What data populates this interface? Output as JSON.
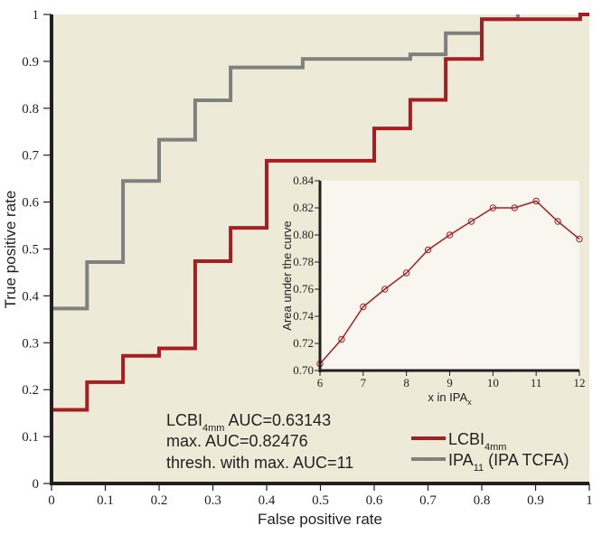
{
  "chart_data": [
    {
      "type": "line",
      "subtype": "roc-step",
      "xlabel": "False positive rate",
      "ylabel": "True positive rate",
      "xlim": [
        0,
        1
      ],
      "ylim": [
        0,
        1
      ],
      "xticks": [
        "0",
        "0.1",
        "0.2",
        "0.3",
        "0.4",
        "0.5",
        "0.6",
        "0.7",
        "0.8",
        "0.9",
        "1"
      ],
      "yticks": [
        "0",
        "0.1",
        "0.2",
        "0.3",
        "0.4",
        "0.5",
        "0.6",
        "0.7",
        "0.8",
        "0.9",
        "1"
      ],
      "grid": false,
      "background": "#edead7",
      "series": [
        {
          "name": "IPA11 (IPA TCFA)",
          "legend_main": "IPA",
          "legend_sub": "11",
          "legend_suffix": " (IPA TCFA)",
          "color": "#808080",
          "x": [
            0,
            0.066,
            0.066,
            0.133,
            0.133,
            0.2,
            0.2,
            0.267,
            0.267,
            0.333,
            0.333,
            0.467,
            0.467,
            0.667,
            0.667,
            0.733,
            0.733,
            0.8,
            0.8,
            0.867,
            0.867
          ],
          "y": [
            0.373,
            0.373,
            0.472,
            0.472,
            0.645,
            0.645,
            0.733,
            0.733,
            0.817,
            0.817,
            0.887,
            0.887,
            0.905,
            0.905,
            0.915,
            0.915,
            0.96,
            0.96,
            0.99,
            0.99,
            1.0
          ]
        },
        {
          "name": "LCBI4mm",
          "legend_main": "LCBI",
          "legend_sub": "4mm",
          "legend_suffix": "",
          "color": "#a51e22",
          "x": [
            0,
            0.066,
            0.066,
            0.133,
            0.133,
            0.2,
            0.2,
            0.267,
            0.267,
            0.333,
            0.333,
            0.4,
            0.4,
            0.6,
            0.6,
            0.667,
            0.667,
            0.733,
            0.733,
            0.8,
            0.8,
            0.867,
            0.867,
            0.983,
            0.983,
            1.0
          ],
          "y": [
            0.157,
            0.157,
            0.216,
            0.216,
            0.272,
            0.272,
            0.288,
            0.288,
            0.474,
            0.474,
            0.545,
            0.545,
            0.688,
            0.688,
            0.757,
            0.757,
            0.818,
            0.818,
            0.905,
            0.905,
            0.99,
            0.99,
            0.99,
            0.99,
            1.0,
            1.0
          ]
        }
      ],
      "annotations": {
        "line1_main": "LCBI",
        "line1_sub": "4mm",
        "line1_rest": " AUC=0.63143",
        "line2": "max. AUC=0.82476",
        "line3": "thresh. with max. AUC=11"
      },
      "legend_position": "bottom-right"
    },
    {
      "type": "line",
      "subtype": "inset",
      "xlabel_main": "x in IPA",
      "xlabel_sub": "x",
      "ylabel": "Area under the curve",
      "xlim": [
        6,
        12
      ],
      "ylim": [
        0.7,
        0.84
      ],
      "xticks": [
        "6",
        "7",
        "8",
        "9",
        "10",
        "11",
        "12"
      ],
      "yticks": [
        "0.70",
        "0.72",
        "0.74",
        "0.76",
        "0.78",
        "0.80",
        "0.82",
        "0.84"
      ],
      "background": "#f8f6ee",
      "color": "#a51e22",
      "marker": "open-circle",
      "x": [
        6,
        6.5,
        7,
        7.5,
        8,
        8.5,
        9,
        9.5,
        10,
        10.5,
        11,
        11.5,
        12
      ],
      "y": [
        0.705,
        0.723,
        0.747,
        0.76,
        0.772,
        0.789,
        0.8,
        0.81,
        0.82,
        0.82,
        0.825,
        0.81,
        0.797
      ]
    }
  ]
}
